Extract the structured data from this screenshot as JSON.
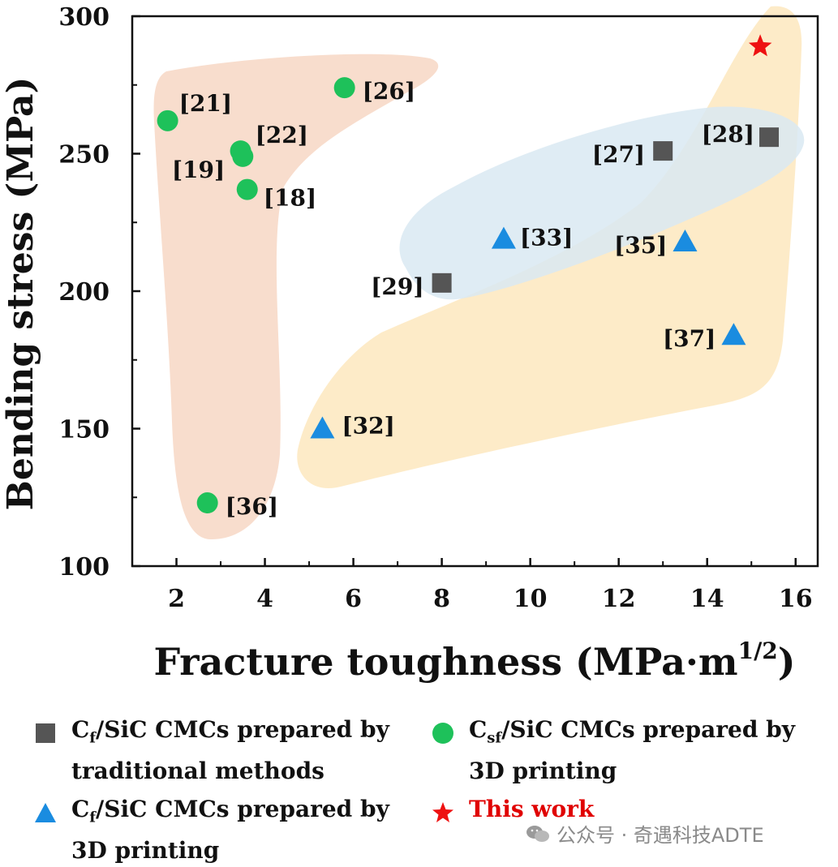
{
  "chart_data": {
    "type": "scatter",
    "xlabel": "Fracture toughness (MPa·m",
    "xlabel_sup": "1/2",
    "xlabel_close": ")",
    "ylabel": "Bending stress (MPa)",
    "xlim": [
      1,
      16.5
    ],
    "ylim": [
      100,
      300
    ],
    "xticks": [
      2,
      4,
      6,
      8,
      10,
      12,
      14,
      16
    ],
    "yticks": [
      100,
      150,
      200,
      250,
      300
    ],
    "series": [
      {
        "name": "Cf/SiC CMCs prepared by traditional methods",
        "marker": "square",
        "color": "#555555",
        "points": [
          {
            "x": 13.0,
            "y": 251,
            "label": "[27]"
          },
          {
            "x": 15.4,
            "y": 256,
            "label": "[28]"
          },
          {
            "x": 8.0,
            "y": 203,
            "label": "[29]"
          }
        ]
      },
      {
        "name": "Csf/SiC CMCs prepared by 3D printing",
        "marker": "circle",
        "color": "#1ec15a",
        "points": [
          {
            "x": 1.8,
            "y": 262,
            "label": "[21]"
          },
          {
            "x": 5.8,
            "y": 274,
            "label": "[26]"
          },
          {
            "x": 3.45,
            "y": 251,
            "label": "[22]"
          },
          {
            "x": 3.5,
            "y": 249,
            "label": "[19]"
          },
          {
            "x": 3.6,
            "y": 237,
            "label": "[18]"
          },
          {
            "x": 2.7,
            "y": 123,
            "label": "[36]"
          }
        ]
      },
      {
        "name": "Cf/SiC CMCs prepared by 3D printing",
        "marker": "triangle",
        "color": "#1a8ce0",
        "points": [
          {
            "x": 9.4,
            "y": 219,
            "label": "[33]"
          },
          {
            "x": 13.5,
            "y": 218,
            "label": "[35]"
          },
          {
            "x": 14.6,
            "y": 184,
            "label": "[37]"
          },
          {
            "x": 5.3,
            "y": 150,
            "label": "[32]"
          }
        ]
      },
      {
        "name": "This work",
        "marker": "star",
        "color": "#ee1111",
        "points": [
          {
            "x": 15.2,
            "y": 289,
            "label": ""
          }
        ]
      }
    ],
    "regions": [
      {
        "color": "#f7d9c8"
      },
      {
        "color": "#fde9c2"
      },
      {
        "color": "#d9e9f2"
      }
    ]
  },
  "legend": {
    "items": [
      {
        "marker": "square",
        "color": "#555555",
        "line1_main": "C",
        "line1_sub": "f",
        "line1_rest": "/SiC CMCs prepared by",
        "line2": "traditional methods"
      },
      {
        "marker": "circle",
        "color": "#1ec15a",
        "line1_main": "C",
        "line1_sub": "sf",
        "line1_rest": "/SiC CMCs prepared by",
        "line2": "3D printing"
      },
      {
        "marker": "triangle",
        "color": "#1a8ce0",
        "line1_main": "C",
        "line1_sub": "f",
        "line1_rest": "/SiC CMCs prepared by",
        "line2": "3D printing"
      },
      {
        "marker": "star",
        "color": "#ee1111",
        "line1_main": "This work",
        "line1_sub": "",
        "line1_rest": "",
        "line2": ""
      }
    ]
  },
  "watermark": {
    "text": "公众号 · 奇遇科技ADTE",
    "icon": "wechat-icon"
  }
}
